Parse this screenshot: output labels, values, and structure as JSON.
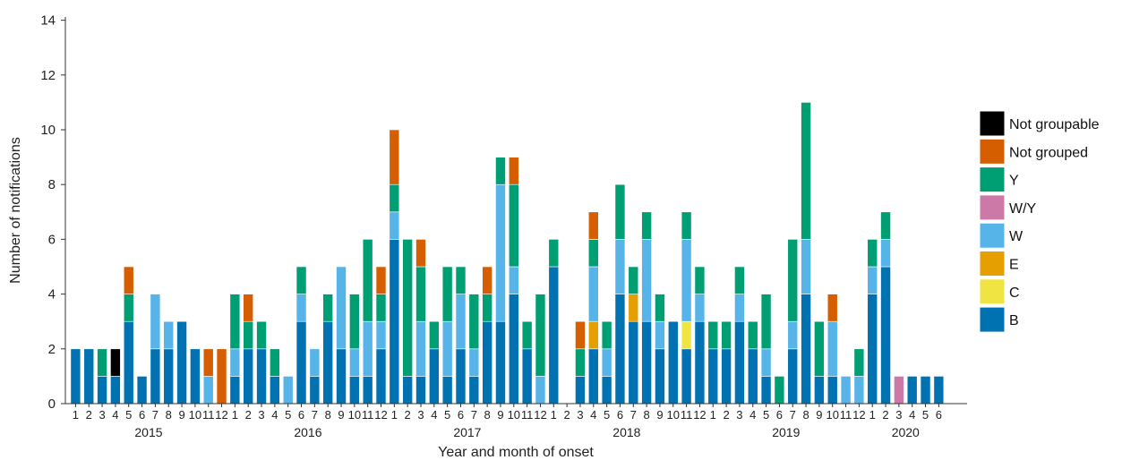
{
  "chart_data": {
    "type": "bar",
    "stacked": true,
    "xlabel": "Year and month of onset",
    "ylabel": "Number of notifications",
    "ylim": [
      0,
      14
    ],
    "yticks": [
      0,
      2,
      4,
      6,
      8,
      10,
      12,
      14
    ],
    "grid": false,
    "legend_position": "right",
    "years": [
      {
        "label": "2015",
        "first_month": 1,
        "last_month": 12
      },
      {
        "label": "2016",
        "first_month": 1,
        "last_month": 12
      },
      {
        "label": "2017",
        "first_month": 1,
        "last_month": 12
      },
      {
        "label": "2018",
        "first_month": 1,
        "last_month": 12
      },
      {
        "label": "2019",
        "first_month": 1,
        "last_month": 12
      },
      {
        "label": "2020",
        "first_month": 1,
        "last_month": 6
      }
    ],
    "categories": [
      "1",
      "2",
      "3",
      "4",
      "5",
      "6",
      "7",
      "8",
      "9",
      "10",
      "11",
      "12",
      "1",
      "2",
      "3",
      "4",
      "5",
      "6",
      "7",
      "8",
      "9",
      "10",
      "11",
      "12",
      "1",
      "2",
      "3",
      "4",
      "5",
      "6",
      "7",
      "8",
      "9",
      "10",
      "11",
      "12",
      "1",
      "2",
      "3",
      "4",
      "5",
      "6",
      "7",
      "8",
      "9",
      "10",
      "11",
      "12",
      "1",
      "2",
      "3",
      "4",
      "5",
      "6",
      "7",
      "8",
      "9",
      "10",
      "11",
      "12",
      "1",
      "2",
      "3",
      "4",
      "5",
      "6"
    ],
    "series": [
      {
        "name": "B",
        "color": "#0072b2",
        "values": [
          2,
          2,
          1,
          1,
          3,
          1,
          2,
          2,
          3,
          2,
          0,
          0,
          1,
          2,
          2,
          1,
          0,
          3,
          1,
          3,
          2,
          1,
          1,
          2,
          6,
          1,
          1,
          2,
          1,
          2,
          1,
          3,
          3,
          4,
          2,
          0,
          5,
          0,
          1,
          2,
          1,
          4,
          3,
          3,
          2,
          3,
          2,
          3,
          2,
          2,
          3,
          2,
          1,
          0,
          2,
          4,
          1,
          1,
          0,
          0,
          4,
          5,
          0,
          1,
          1,
          1
        ]
      },
      {
        "name": "C",
        "color": "#f0e442",
        "values": [
          0,
          0,
          0,
          0,
          0,
          0,
          0,
          0,
          0,
          0,
          0,
          0,
          0,
          0,
          0,
          0,
          0,
          0,
          0,
          0,
          0,
          0,
          0,
          0,
          0,
          0,
          0,
          0,
          0,
          0,
          0,
          0,
          0,
          0,
          0,
          0,
          0,
          0,
          0,
          0,
          0,
          0,
          0,
          0,
          0,
          0,
          1,
          0,
          0,
          0,
          0,
          0,
          0,
          0,
          0,
          0,
          0,
          0,
          0,
          0,
          0,
          0,
          0,
          0,
          0,
          0
        ]
      },
      {
        "name": "E",
        "color": "#e69f00",
        "values": [
          0,
          0,
          0,
          0,
          0,
          0,
          0,
          0,
          0,
          0,
          0,
          0,
          0,
          0,
          0,
          0,
          0,
          0,
          0,
          0,
          0,
          0,
          0,
          0,
          0,
          0,
          0,
          0,
          0,
          0,
          0,
          0,
          0,
          0,
          0,
          0,
          0,
          0,
          0,
          1,
          0,
          0,
          1,
          0,
          0,
          0,
          0,
          0,
          0,
          0,
          0,
          0,
          0,
          0,
          0,
          0,
          0,
          0,
          0,
          0,
          0,
          0,
          0,
          0,
          0,
          0
        ]
      },
      {
        "name": "W",
        "color": "#56b4e9",
        "values": [
          0,
          0,
          0,
          0,
          0,
          0,
          2,
          1,
          0,
          0,
          1,
          0,
          1,
          0,
          0,
          0,
          1,
          1,
          1,
          0,
          3,
          1,
          2,
          1,
          1,
          0,
          2,
          0,
          2,
          2,
          1,
          0,
          5,
          1,
          0,
          1,
          0,
          0,
          0,
          2,
          1,
          2,
          0,
          3,
          1,
          0,
          3,
          1,
          0,
          0,
          1,
          0,
          1,
          0,
          1,
          2,
          0,
          2,
          1,
          1,
          1,
          1,
          0,
          0,
          0,
          0
        ]
      },
      {
        "name": "W/Y",
        "color": "#cc79a7",
        "values": [
          0,
          0,
          0,
          0,
          0,
          0,
          0,
          0,
          0,
          0,
          0,
          0,
          0,
          0,
          0,
          0,
          0,
          0,
          0,
          0,
          0,
          0,
          0,
          0,
          0,
          0,
          0,
          0,
          0,
          0,
          0,
          0,
          0,
          0,
          0,
          0,
          0,
          0,
          0,
          0,
          0,
          0,
          0,
          0,
          0,
          0,
          0,
          0,
          0,
          0,
          0,
          0,
          0,
          0,
          0,
          0,
          0,
          0,
          0,
          0,
          0,
          0,
          1,
          0,
          0,
          0
        ]
      },
      {
        "name": "Y",
        "color": "#009e73",
        "values": [
          0,
          0,
          1,
          0,
          1,
          0,
          0,
          0,
          0,
          0,
          0,
          0,
          2,
          1,
          1,
          1,
          0,
          1,
          0,
          1,
          0,
          2,
          3,
          1,
          1,
          5,
          2,
          1,
          2,
          1,
          2,
          1,
          1,
          3,
          1,
          3,
          1,
          0,
          1,
          1,
          1,
          2,
          1,
          1,
          1,
          0,
          1,
          1,
          1,
          1,
          1,
          1,
          2,
          1,
          3,
          5,
          2,
          0,
          0,
          1,
          1,
          1,
          0,
          0,
          0,
          0
        ]
      },
      {
        "name": "Not grouped",
        "color": "#d55e00",
        "values": [
          0,
          0,
          0,
          0,
          1,
          0,
          0,
          0,
          0,
          0,
          1,
          2,
          0,
          1,
          0,
          0,
          0,
          0,
          0,
          0,
          0,
          0,
          0,
          1,
          2,
          0,
          1,
          0,
          0,
          0,
          0,
          1,
          0,
          1,
          0,
          0,
          0,
          0,
          1,
          1,
          0,
          0,
          0,
          0,
          0,
          0,
          0,
          0,
          0,
          0,
          0,
          0,
          0,
          0,
          0,
          0,
          0,
          1,
          0,
          0,
          0,
          0,
          0,
          0,
          0,
          0
        ]
      },
      {
        "name": "Not groupable",
        "color": "#000000",
        "values": [
          0,
          0,
          0,
          1,
          0,
          0,
          0,
          0,
          0,
          0,
          0,
          0,
          0,
          0,
          0,
          0,
          0,
          0,
          0,
          0,
          0,
          0,
          0,
          0,
          0,
          0,
          0,
          0,
          0,
          0,
          0,
          0,
          0,
          0,
          0,
          0,
          0,
          0,
          0,
          0,
          0,
          0,
          0,
          0,
          0,
          0,
          0,
          0,
          0,
          0,
          0,
          0,
          0,
          0,
          0,
          0,
          0,
          0,
          0,
          0,
          0,
          0,
          0,
          0,
          0,
          0
        ]
      }
    ],
    "legend_order": [
      "Not groupable",
      "Not grouped",
      "Y",
      "W/Y",
      "W",
      "E",
      "C",
      "B"
    ]
  }
}
